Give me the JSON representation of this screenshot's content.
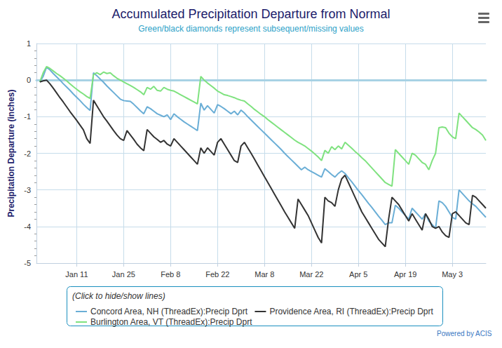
{
  "chart_data": {
    "type": "line",
    "title": "Accumulated Precipitation Departure from Normal",
    "subtitle": "Green/black diamonds represent subsequent/missing values",
    "y_label": "Precipitation Departure (inches)",
    "annotations": [
      "(Click to hide/show lines)",
      "Powered by ACIS"
    ],
    "categories": [
      null,
      null,
      null,
      null,
      null,
      null,
      null,
      null,
      null,
      null,
      null,
      null,
      "Jan 11",
      null,
      null,
      null,
      null,
      null,
      null,
      null,
      null,
      null,
      null,
      null,
      null,
      null,
      "Jan 25",
      null,
      null,
      null,
      null,
      null,
      null,
      null,
      null,
      null,
      null,
      null,
      null,
      null,
      "Feb 8",
      null,
      null,
      null,
      null,
      null,
      null,
      null,
      null,
      null,
      null,
      null,
      null,
      null,
      "Feb 22",
      null,
      null,
      null,
      null,
      null,
      null,
      null,
      null,
      null,
      null,
      null,
      null,
      null,
      "Mar 8",
      null,
      null,
      null,
      null,
      null,
      null,
      null,
      null,
      null,
      null,
      null,
      null,
      null,
      "Mar 22",
      null,
      null,
      null,
      null,
      null,
      null,
      null,
      null,
      null,
      null,
      null,
      null,
      null,
      "Apr 5",
      null,
      null,
      null,
      null,
      null,
      null,
      null,
      null,
      null,
      null,
      null,
      null,
      null,
      "Apr 19",
      null,
      null,
      null,
      null,
      null,
      null,
      null,
      null,
      null,
      null,
      null,
      null,
      null,
      "May 3",
      null,
      null,
      null,
      null,
      null,
      null,
      null,
      null,
      null,
      null
    ],
    "series": [
      {
        "name": "Concord Area, NH (ThreadEx):Precip Dprt",
        "color": "#6aaed6",
        "values": [
          null,
          -0.05,
          0.1,
          0.35,
          0.28,
          0.18,
          0.09,
          0.0,
          -0.1,
          -0.19,
          -0.28,
          -0.38,
          -0.47,
          -0.56,
          -0.66,
          -0.75,
          -0.83,
          0.2,
          0.12,
          0.03,
          -0.06,
          -0.16,
          -0.25,
          -0.34,
          -0.43,
          -0.52,
          -0.56,
          -0.57,
          -0.58,
          -0.66,
          -0.75,
          -0.84,
          -0.92,
          -0.73,
          -0.78,
          -0.85,
          -0.92,
          -0.96,
          -1.0,
          -0.95,
          -1.08,
          -0.92,
          -1.0,
          -1.07,
          -1.14,
          -1.2,
          -1.26,
          -1.32,
          -1.38,
          -0.63,
          -0.82,
          -0.7,
          -0.8,
          -0.9,
          -0.67,
          -0.72,
          -0.78,
          -0.85,
          -0.92,
          -0.85,
          -0.95,
          -0.82,
          -0.9,
          -1.0,
          -1.09,
          -1.18,
          -1.27,
          -1.36,
          -1.45,
          -1.54,
          -1.63,
          -1.72,
          -1.81,
          -1.9,
          -2.0,
          -2.09,
          -2.18,
          -2.27,
          -2.36,
          -2.45,
          -2.38,
          -2.45,
          -2.5,
          -2.55,
          -2.6,
          -2.65,
          -2.42,
          -2.5,
          -2.58,
          -2.65,
          -2.55,
          -2.48,
          -2.55,
          -2.67,
          -2.78,
          -2.9,
          -3.02,
          -3.13,
          -3.25,
          -3.37,
          -3.48,
          -3.6,
          -3.72,
          -3.83,
          -3.95,
          -3.9,
          -3.9,
          -3.42,
          -3.5,
          -3.6,
          -3.7,
          -3.8,
          -3.5,
          -3.6,
          -3.7,
          -3.8,
          -3.65,
          -3.85,
          -3.95,
          -4.05,
          -3.3,
          -3.35,
          -3.45,
          -3.6,
          -3.75,
          -3.8,
          -3.0,
          -3.1,
          -3.2,
          -3.3,
          -3.38,
          -3.45,
          -3.55,
          -3.65,
          -3.75
        ]
      },
      {
        "name": "Burlington Area, VT (ThreadEx):Precip Dprt",
        "color": "#7fe27f",
        "values": [
          null,
          -0.05,
          0.2,
          0.37,
          0.32,
          0.25,
          0.18,
          0.12,
          0.05,
          -0.02,
          -0.1,
          -0.18,
          -0.25,
          -0.32,
          -0.38,
          -0.45,
          -0.5,
          0.15,
          0.2,
          0.15,
          0.22,
          0.18,
          0.2,
          0.12,
          0.05,
          0.0,
          -0.05,
          -0.1,
          -0.15,
          -0.2,
          -0.26,
          -0.32,
          -0.4,
          -0.2,
          -0.25,
          -0.17,
          -0.28,
          -0.3,
          -0.2,
          -0.25,
          -0.28,
          -0.3,
          -0.35,
          -0.4,
          -0.45,
          -0.5,
          -0.55,
          -0.6,
          -0.65,
          0.1,
          0.0,
          -0.08,
          -0.15,
          -0.22,
          -0.3,
          -0.35,
          -0.4,
          -0.42,
          -0.45,
          -0.48,
          -0.52,
          -0.55,
          -0.57,
          -0.65,
          -0.72,
          -0.8,
          -0.87,
          -0.94,
          -1.0,
          -1.08,
          -1.15,
          -1.22,
          -1.29,
          -1.36,
          -1.43,
          -1.5,
          -1.57,
          -1.64,
          -1.7,
          -1.75,
          -1.8,
          -1.87,
          -1.94,
          -2.02,
          -2.1,
          -2.2,
          -1.92,
          -2.0,
          -1.82,
          -1.9,
          -1.8,
          -1.88,
          -1.7,
          -1.78,
          -1.86,
          -1.95,
          -2.03,
          -2.12,
          -2.2,
          -2.3,
          -2.4,
          -2.5,
          -2.6,
          -2.7,
          -2.8,
          -2.85,
          -2.9,
          -1.9,
          -2.0,
          -2.1,
          -2.2,
          -2.3,
          -2.0,
          -2.05,
          -2.15,
          -2.25,
          -2.3,
          -2.45,
          -2.2,
          -2.0,
          -1.3,
          -1.28,
          -1.3,
          -1.45,
          -1.55,
          -1.6,
          -0.9,
          -1.0,
          -1.1,
          -1.2,
          -1.3,
          -1.35,
          -1.42,
          -1.5,
          -1.65
        ]
      },
      {
        "name": "Providence Area, RI (ThreadEx):Precip Dprt",
        "color": "#333333",
        "values": [
          null,
          -0.05,
          -0.02,
          0.0,
          -0.1,
          -0.22,
          -0.35,
          -0.48,
          -0.6,
          -0.73,
          -0.86,
          -0.98,
          -1.1,
          -1.23,
          -1.36,
          -1.6,
          -1.73,
          -0.55,
          -0.7,
          -0.85,
          -1.0,
          -1.12,
          -1.25,
          -1.38,
          -1.5,
          -1.6,
          -1.65,
          -1.38,
          -1.5,
          -1.62,
          -1.75,
          -1.85,
          -1.93,
          -1.35,
          -1.45,
          -1.55,
          -1.62,
          -1.7,
          -1.65,
          -1.75,
          -1.8,
          -1.6,
          -1.7,
          -1.8,
          -1.9,
          -2.0,
          -2.1,
          -2.2,
          -2.3,
          -1.85,
          -2.0,
          -1.85,
          -1.95,
          -2.05,
          -1.7,
          -1.6,
          -1.75,
          -1.9,
          -2.05,
          -2.2,
          -2.25,
          -1.8,
          -1.7,
          -1.85,
          -2.0,
          -2.16,
          -2.32,
          -2.48,
          -2.64,
          -2.8,
          -2.96,
          -3.12,
          -3.28,
          -3.44,
          -3.6,
          -3.75,
          -3.9,
          -4.05,
          -3.25,
          -3.4,
          -3.55,
          -3.7,
          -3.9,
          -4.1,
          -4.3,
          -4.45,
          -3.2,
          -3.3,
          -3.35,
          -3.45,
          -3.0,
          -2.7,
          -2.6,
          -2.8,
          -3.0,
          -3.2,
          -3.4,
          -3.6,
          -3.75,
          -3.9,
          -4.05,
          -4.2,
          -4.35,
          -4.45,
          -4.55,
          -3.8,
          -3.2,
          -3.3,
          -3.4,
          -3.55,
          -3.7,
          -3.85,
          -3.65,
          -3.8,
          -3.95,
          -4.1,
          -3.65,
          -3.8,
          -4.0,
          -4.05,
          -4.0,
          -4.15,
          -4.25,
          -4.3,
          -3.65,
          -3.6,
          -3.7,
          -3.8,
          -3.9,
          -3.95,
          -3.15,
          -3.2,
          -3.3,
          -3.4,
          -3.5
        ]
      }
    ],
    "ylim": [
      -5,
      1
    ],
    "yticks": [
      -5,
      -4,
      -3,
      -2,
      -1,
      0,
      1
    ],
    "grid": true,
    "legend": "bottom",
    "marker": "none"
  }
}
